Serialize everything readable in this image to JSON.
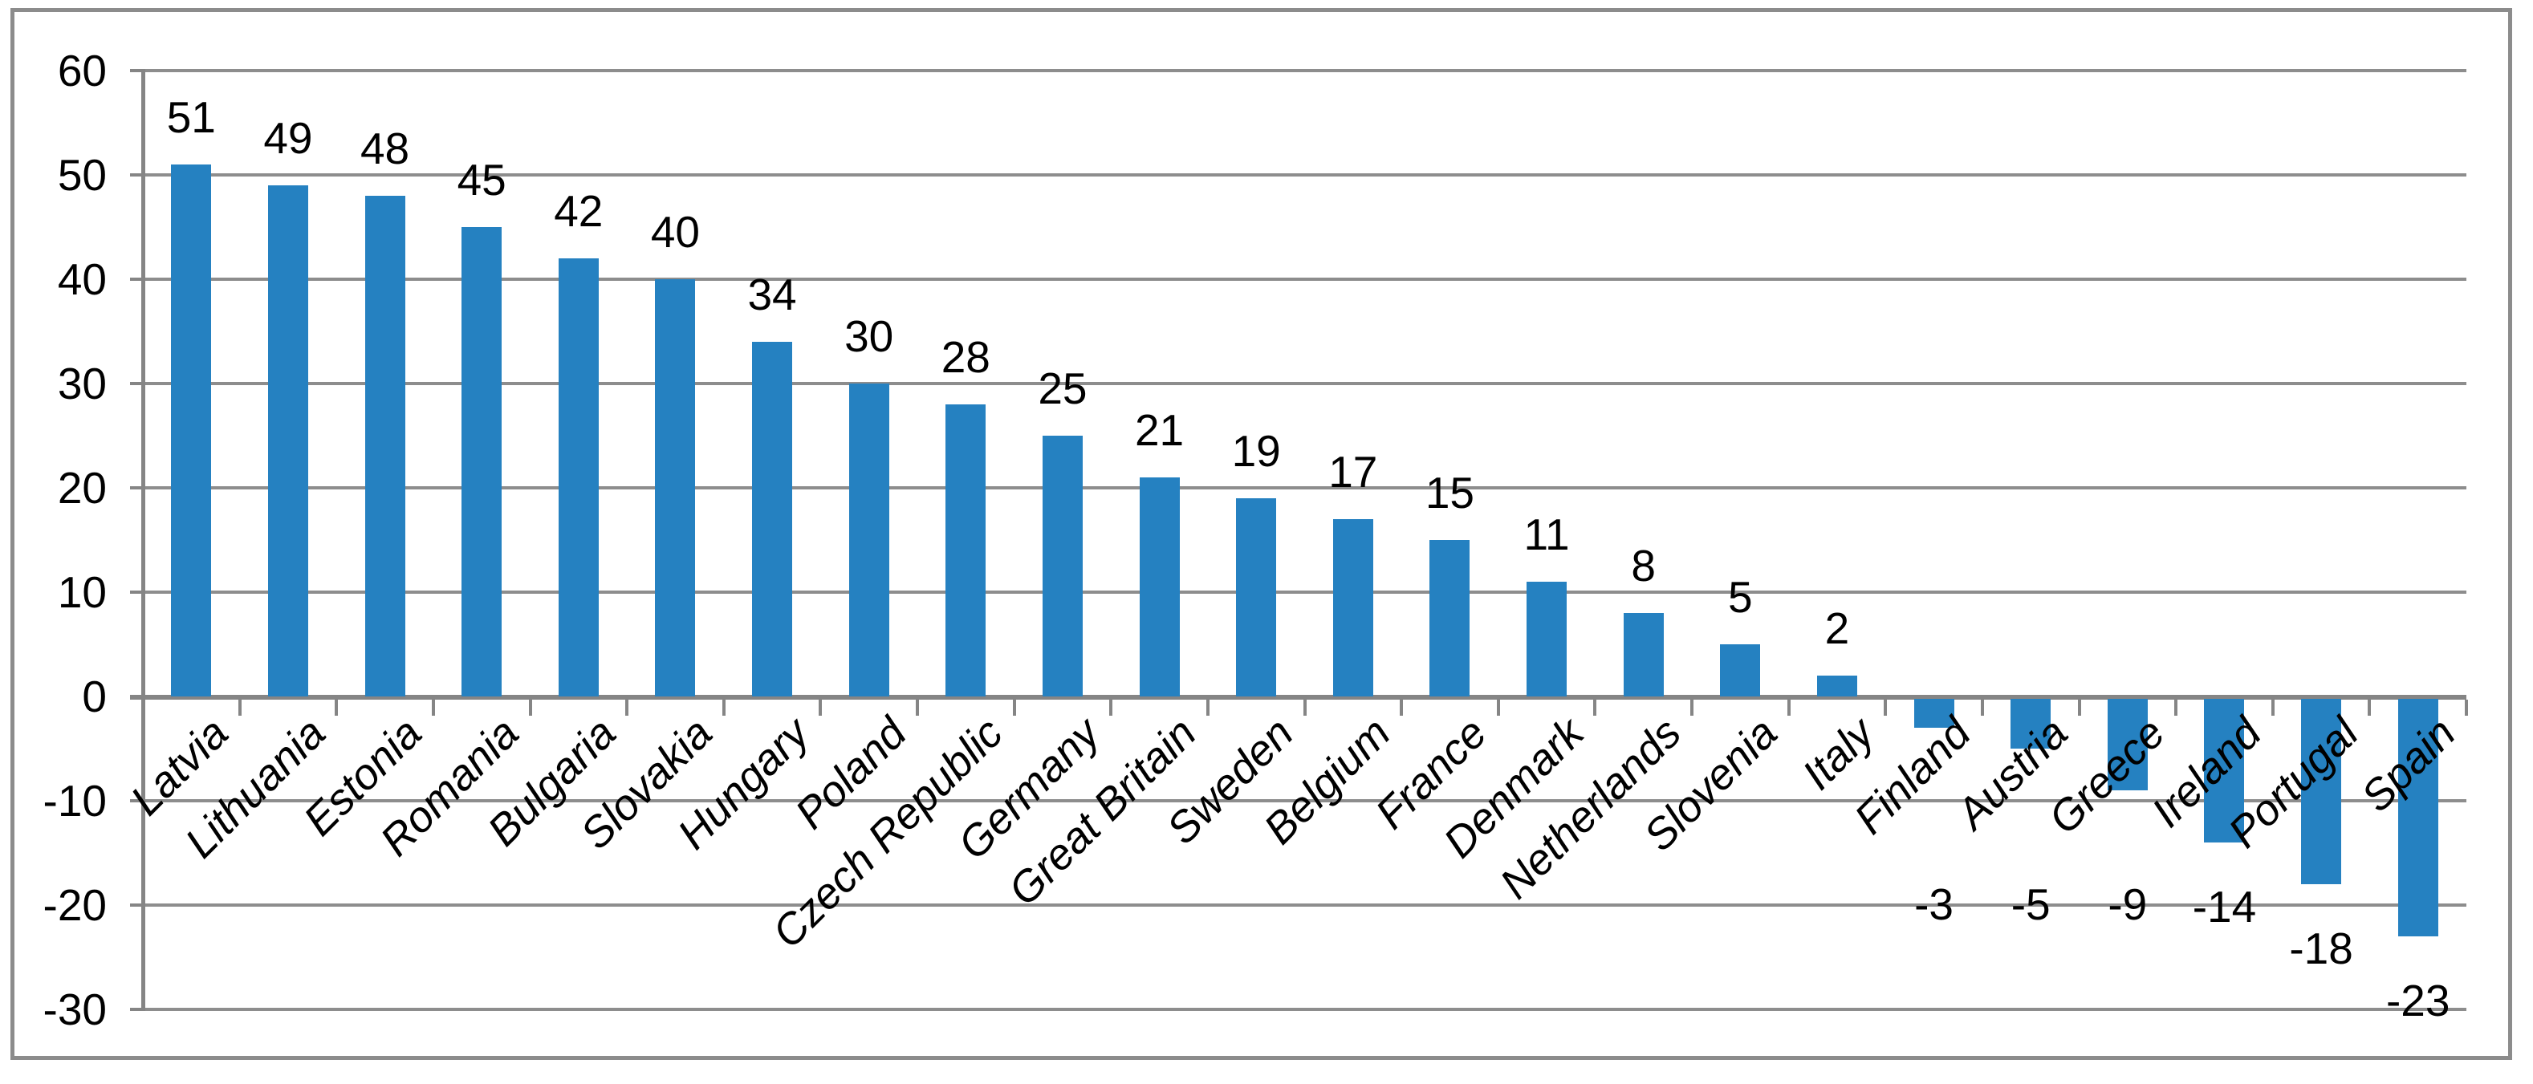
{
  "chart_data": {
    "type": "bar",
    "title": "",
    "xlabel": "",
    "ylabel": "",
    "categories": [
      "Latvia",
      "Lithuania",
      "Estonia",
      "Romania",
      "Bulgaria",
      "Slovakia",
      "Hungary",
      "Poland",
      "Czech Republic",
      "Germany",
      "Great Britain",
      "Sweden",
      "Belgium",
      "France",
      "Denmark",
      "Netherlands",
      "Slovenia",
      "Italy",
      "Finland",
      "Austria",
      "Greece",
      "Ireland",
      "Portugal",
      "Spain"
    ],
    "values": [
      51,
      49,
      48,
      45,
      42,
      40,
      34,
      30,
      28,
      25,
      21,
      19,
      17,
      15,
      11,
      8,
      5,
      2,
      -3,
      -5,
      -9,
      -14,
      -18,
      -23
    ],
    "ylim": [
      -30,
      60
    ],
    "ytick_interval": 10,
    "ytick_labels": [
      "60",
      "50",
      "40",
      "30",
      "20",
      "10",
      "0",
      "-10",
      "-20",
      "-30"
    ],
    "ytick_values": [
      60,
      50,
      40,
      30,
      20,
      10,
      0,
      -10,
      -20,
      -30
    ],
    "grid": true,
    "legend_position": "none",
    "data_labels_shown": true,
    "colors": {
      "bar": "#2581c1",
      "gridline": "#8d8d8d",
      "axis": "#858585",
      "text": "#000000",
      "frame_border": "#8c8c8c",
      "background": "#ffffff"
    }
  }
}
